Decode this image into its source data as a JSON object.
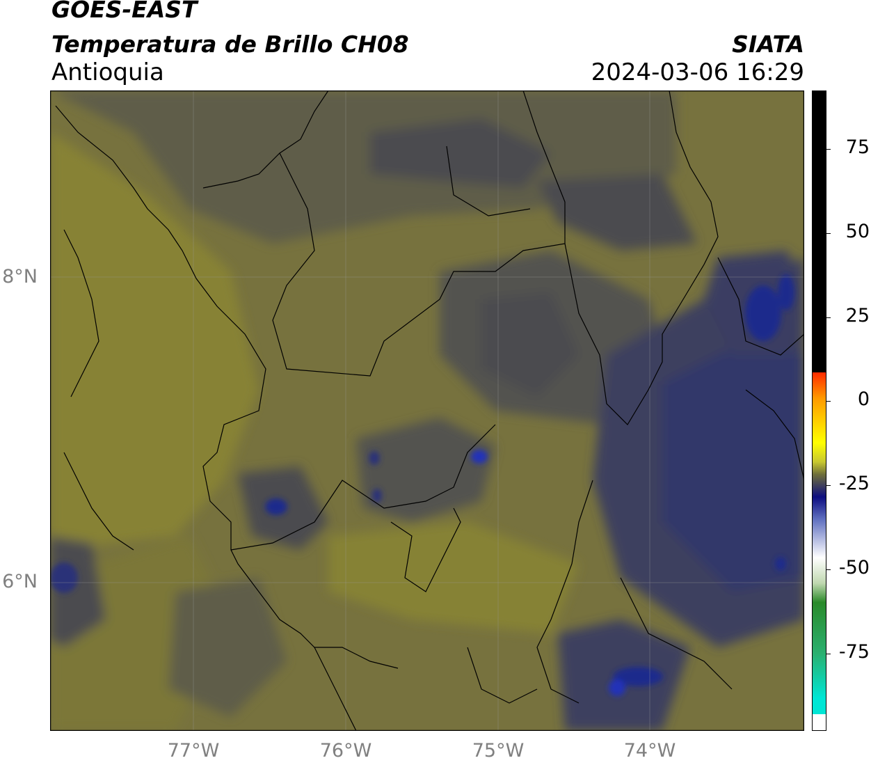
{
  "header": {
    "satellite": "GOES-EAST",
    "product": "Temperatura de Brillo CH08",
    "region": "Antioquia",
    "agency": "SIATA",
    "datetime": "2024-03-06 16:29"
  },
  "axes": {
    "lat_ticks": [
      "8°N",
      "6°N"
    ],
    "lon_ticks": [
      "77°W",
      "76°W",
      "75°W",
      "74°W"
    ]
  },
  "colorbar": {
    "ticks": [
      "75",
      "50",
      "25",
      "0",
      "-25",
      "-50",
      "-75"
    ],
    "colors": {
      "max": "#000000",
      "red": "#ff2a00",
      "orange": "#ff9900",
      "yellow": "#ffff00",
      "olive": "#6e6e3a",
      "navy": "#0d0d80",
      "white": "#ffffff",
      "green": "#2a8a2a",
      "cyan": "#00e6d5"
    }
  },
  "map": {
    "colors": {
      "olive_light": "#878236",
      "olive": "#77723e",
      "grey_olive": "#5e5d49",
      "dark_grey": "#4c4c50",
      "slate": "#3e3f5e",
      "blue_slate": "#33386a",
      "deep_blue": "#1d2a8c",
      "bright_blue": "#2233b8"
    }
  }
}
